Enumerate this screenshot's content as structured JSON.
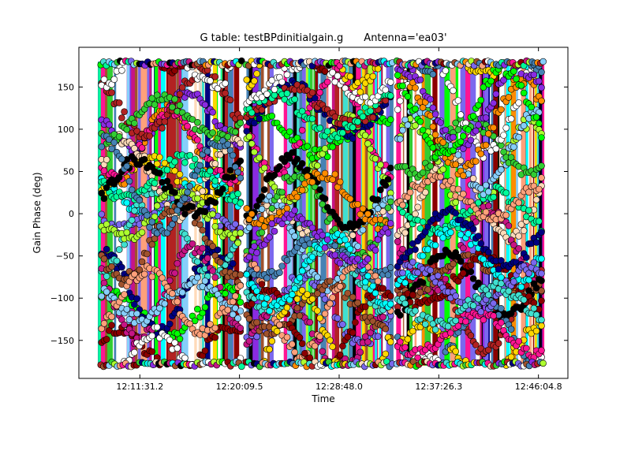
{
  "chart_data": {
    "type": "scatter",
    "title": "G table: testBPdinitialgain.g",
    "title_antenna": "Antenna='ea03'",
    "xlabel": "Time",
    "ylabel": "Gain Phase (deg)",
    "xlim": [
      "12:06:14",
      "12:48:38"
    ],
    "ylim": [
      -195,
      197
    ],
    "x_ticks": [
      "12:11:31.2",
      "12:20:09.5",
      "12:28:48.0",
      "12:37:26.3",
      "12:46:04.8"
    ],
    "y_ticks": [
      150,
      100,
      50,
      0,
      -50,
      -100,
      -150
    ],
    "scans": [
      {
        "start": "12:08:00",
        "end": "12:20:25"
      },
      {
        "start": "12:20:35",
        "end": "12:33:30"
      },
      {
        "start": "12:33:40",
        "end": "12:46:40"
      }
    ],
    "y_range_points": [
      -180,
      180
    ],
    "note_series": "many antenna/spw series of phase solutions wrapping between -180 and 180 deg",
    "colors": [
      "#8b0000",
      "#ff8c00",
      "#ffd700",
      "#00ffff",
      "#8a2be2",
      "#00ff00",
      "#ff1493",
      "#000080",
      "#7b68ee",
      "#40e0d0",
      "#ffdab9",
      "#adff2f",
      "#b22222",
      "#00fa9a",
      "#c71585",
      "#87cefa",
      "#a0522d",
      "#32cd32",
      "#000000",
      "#ffffff",
      "#4682b4",
      "#ffa07a"
    ]
  }
}
